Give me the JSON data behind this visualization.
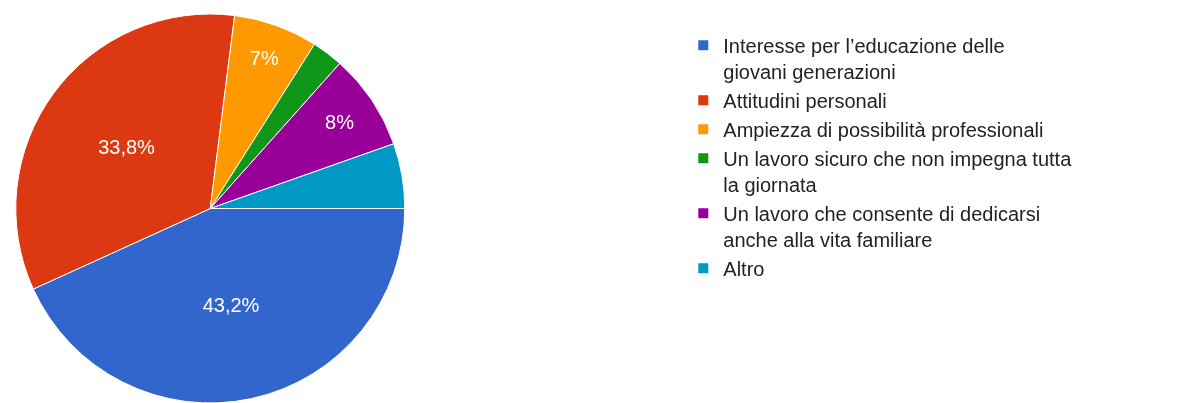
{
  "chart_data": {
    "type": "pie",
    "categories": [
      "Interesse per l’educazione delle giovani generazioni",
      "Attitudini personali",
      "Ampiezza di possibilità professionali",
      "Un lavoro sicuro che non impegna tutta la giornata",
      "Un lavoro che consente di dedicarsi anche alla vita familiare",
      "Altro"
    ],
    "values": [
      43.2,
      33.8,
      7,
      2.6,
      8,
      5.4
    ],
    "colors": [
      "#3366cc",
      "#dc3912",
      "#ff9900",
      "#109618",
      "#990099",
      "#0099c6"
    ],
    "value_labels": [
      "43,2%",
      "33,8%",
      "7%",
      null,
      "8%",
      null
    ],
    "legend": "right"
  }
}
